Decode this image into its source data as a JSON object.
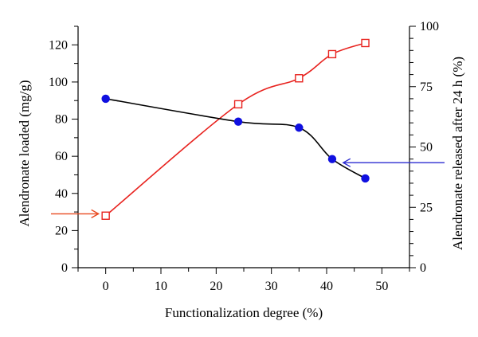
{
  "chart_data": {
    "type": "line",
    "xlabel": "Functionalization degree (%)",
    "ylabel_left": "Alendronate loaded (mg/g)",
    "ylabel_right": "Alendronate released after 24 h (%)",
    "xlim": [
      -5,
      55
    ],
    "ylim_left": [
      0,
      130
    ],
    "ylim_right": [
      0,
      100
    ],
    "x_ticks": [
      0,
      10,
      20,
      30,
      40,
      50
    ],
    "y_left_ticks": [
      0,
      20,
      40,
      60,
      80,
      100,
      120
    ],
    "y_right_ticks": [
      0,
      25,
      50,
      75,
      100
    ],
    "grid": false,
    "series": [
      {
        "axis": "left",
        "color": "#e8231f",
        "marker": "open-square",
        "x": [
          0,
          24,
          35,
          41,
          47
        ],
        "values": [
          28,
          88,
          102,
          115,
          121
        ]
      },
      {
        "axis": "right",
        "color": "#000000",
        "marker": "filled-circle",
        "marker_color": "#1010e0",
        "x": [
          0,
          24,
          35,
          41,
          47
        ],
        "values": [
          70,
          60.5,
          58,
          45,
          37
        ]
      }
    ],
    "annotations": [
      {
        "type": "arrow",
        "color": "#e8491f",
        "direction": "right",
        "points_to_axis": "left",
        "at_value": 29
      },
      {
        "type": "arrow",
        "color": "#2b2bd0",
        "direction": "left",
        "points_to_axis": "right",
        "at_value": 43.5
      }
    ]
  }
}
